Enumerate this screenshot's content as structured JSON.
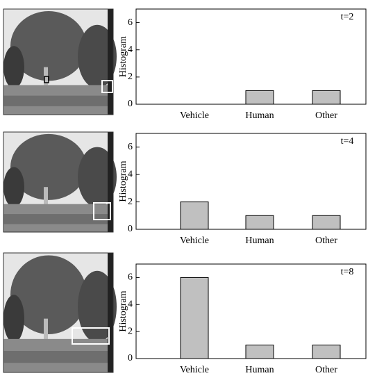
{
  "chart_data": [
    {
      "type": "bar",
      "annotation": "t=2",
      "ylabel": "Histogram",
      "categories": [
        "Vehicle",
        "Human",
        "Other"
      ],
      "values": [
        0,
        1,
        1
      ],
      "color": "#c0c0c0",
      "ylim": [
        0,
        7
      ],
      "yticks": [
        0,
        2,
        4,
        6
      ]
    },
    {
      "type": "bar",
      "annotation": "t=4",
      "ylabel": "Histogram",
      "categories": [
        "Vehicle",
        "Human",
        "Other"
      ],
      "values": [
        2,
        1,
        1
      ],
      "color": "#c0c0c0",
      "ylim": [
        0,
        7
      ],
      "yticks": [
        0,
        2,
        4,
        6
      ]
    },
    {
      "type": "bar",
      "annotation": "t=8",
      "ylabel": "Histogram",
      "categories": [
        "Vehicle",
        "Human",
        "Other"
      ],
      "values": [
        6,
        1,
        1
      ],
      "color": "#c0c0c0",
      "ylim": [
        0,
        7
      ],
      "yticks": [
        0,
        2,
        4,
        6
      ]
    }
  ]
}
